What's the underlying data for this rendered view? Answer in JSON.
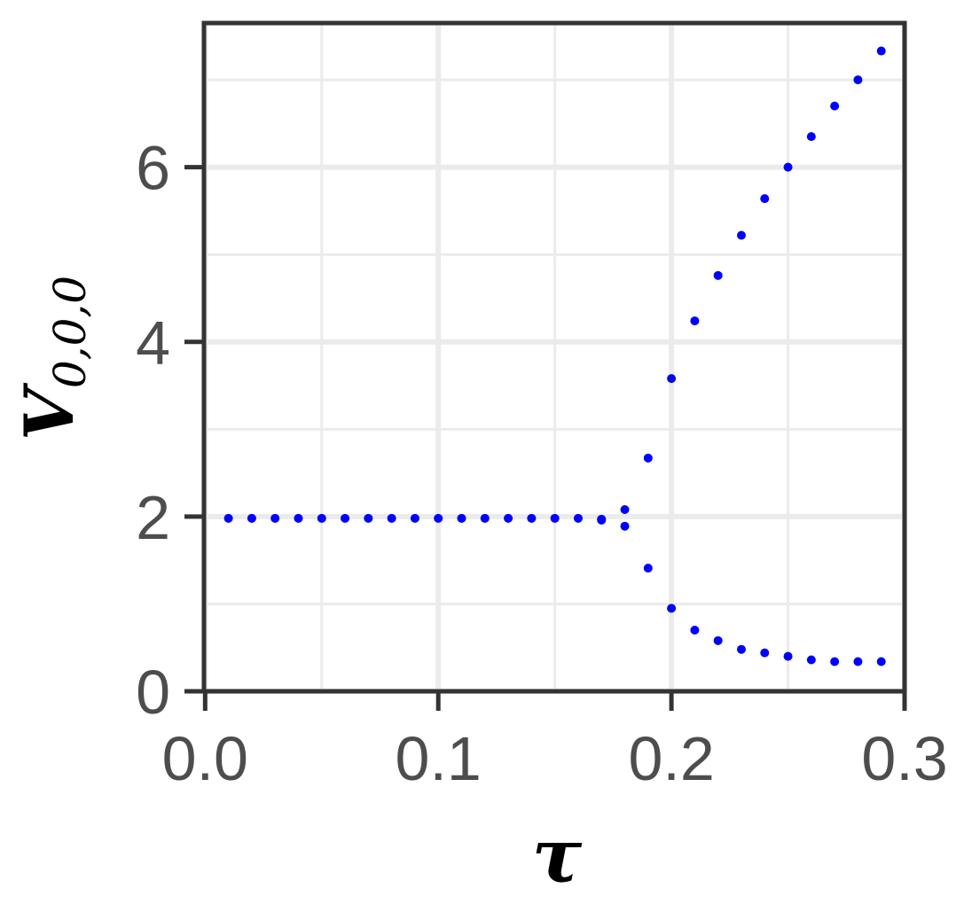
{
  "chart_data": {
    "type": "scatter",
    "xlabel": "τ",
    "ylabel": "V",
    "ylabel_sub": "0,0,0",
    "xlim": [
      -0.0005,
      0.3
    ],
    "ylim": [
      0,
      7.65
    ],
    "x_ticks": [
      0.0,
      0.1,
      0.2,
      0.3
    ],
    "x_tick_labels": [
      "0.0",
      "0.1",
      "0.2",
      "0.3"
    ],
    "y_ticks": [
      0,
      2,
      4,
      6
    ],
    "y_tick_labels": [
      "0",
      "2",
      "4",
      "6"
    ],
    "grid": true,
    "point_color": "#0000ff",
    "series": [
      {
        "points": [
          [
            0.01,
            1.98
          ],
          [
            0.02,
            1.98
          ],
          [
            0.03,
            1.98
          ],
          [
            0.04,
            1.98
          ],
          [
            0.05,
            1.98
          ],
          [
            0.06,
            1.98
          ],
          [
            0.07,
            1.98
          ],
          [
            0.08,
            1.98
          ],
          [
            0.09,
            1.98
          ],
          [
            0.1,
            1.98
          ],
          [
            0.11,
            1.98
          ],
          [
            0.12,
            1.98
          ],
          [
            0.13,
            1.98
          ],
          [
            0.14,
            1.98
          ],
          [
            0.15,
            1.98
          ],
          [
            0.16,
            1.98
          ],
          [
            0.17,
            1.97
          ],
          [
            0.17,
            1.96
          ],
          [
            0.18,
            2.08
          ],
          [
            0.18,
            1.89
          ],
          [
            0.19,
            2.67
          ],
          [
            0.19,
            1.41
          ],
          [
            0.2,
            3.58
          ],
          [
            0.2,
            0.95
          ],
          [
            0.21,
            4.24
          ],
          [
            0.21,
            0.7
          ],
          [
            0.22,
            4.76
          ],
          [
            0.22,
            0.58
          ],
          [
            0.23,
            5.22
          ],
          [
            0.23,
            0.48
          ],
          [
            0.24,
            5.64
          ],
          [
            0.24,
            0.44
          ],
          [
            0.25,
            6.0
          ],
          [
            0.25,
            0.4
          ],
          [
            0.26,
            6.35
          ],
          [
            0.26,
            0.36
          ],
          [
            0.27,
            6.7
          ],
          [
            0.27,
            0.34
          ],
          [
            0.28,
            7.0
          ],
          [
            0.28,
            0.34
          ],
          [
            0.29,
            7.33
          ],
          [
            0.29,
            0.34
          ]
        ]
      }
    ]
  }
}
